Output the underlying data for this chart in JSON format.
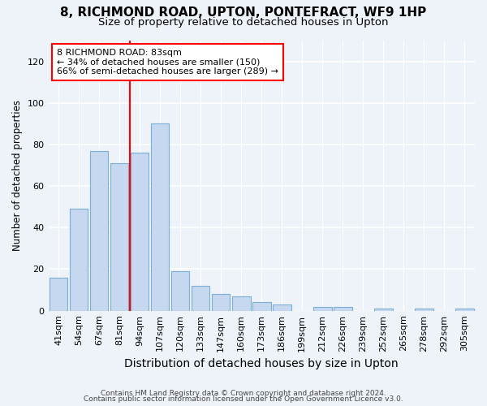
{
  "title1": "8, RICHMOND ROAD, UPTON, PONTEFRACT, WF9 1HP",
  "title2": "Size of property relative to detached houses in Upton",
  "xlabel": "Distribution of detached houses by size in Upton",
  "ylabel": "Number of detached properties",
  "categories": [
    "41sqm",
    "54sqm",
    "67sqm",
    "81sqm",
    "94sqm",
    "107sqm",
    "120sqm",
    "133sqm",
    "147sqm",
    "160sqm",
    "173sqm",
    "186sqm",
    "199sqm",
    "212sqm",
    "226sqm",
    "239sqm",
    "252sqm",
    "265sqm",
    "278sqm",
    "292sqm",
    "305sqm"
  ],
  "values": [
    16,
    49,
    77,
    71,
    76,
    90,
    19,
    12,
    8,
    7,
    4,
    3,
    0,
    2,
    2,
    0,
    1,
    0,
    1,
    0,
    1
  ],
  "bar_color": "#c5d8f0",
  "bar_edge_color": "#7aaed6",
  "property_line_x": 3.5,
  "property_line_color": "red",
  "annotation_text": "8 RICHMOND ROAD: 83sqm\n← 34% of detached houses are smaller (150)\n66% of semi-detached houses are larger (289) →",
  "annotation_box_color": "white",
  "annotation_box_edge": "red",
  "ylim": [
    0,
    130
  ],
  "yticks": [
    0,
    20,
    40,
    60,
    80,
    100,
    120
  ],
  "footer1": "Contains HM Land Registry data © Crown copyright and database right 2024.",
  "footer2": "Contains public sector information licensed under the Open Government Licence v3.0.",
  "background_color": "#eef2f9",
  "grid_color": "white",
  "title1_fontsize": 11,
  "title2_fontsize": 9.5,
  "xlabel_fontsize": 10,
  "ylabel_fontsize": 8.5,
  "tick_fontsize": 8,
  "footer_fontsize": 6.5,
  "annot_fontsize": 8
}
